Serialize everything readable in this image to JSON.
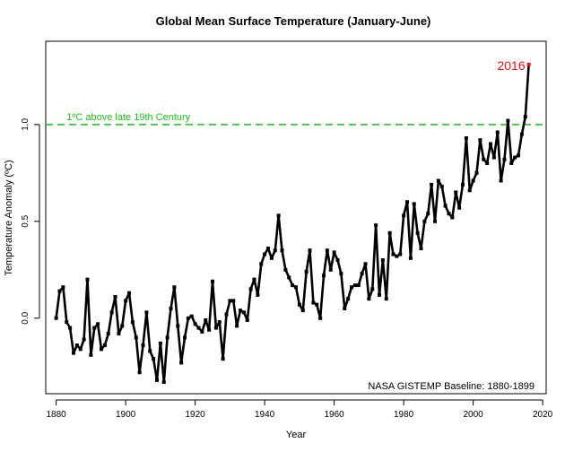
{
  "chart_data": {
    "type": "line",
    "title": "Global Mean Surface Temperature (January-June)",
    "xlabel": "Year",
    "ylabel": "Temperature Anomaly (ºC)",
    "xlim": [
      1877,
      2021
    ],
    "ylim": [
      -0.39,
      1.43
    ],
    "xticks": [
      1880,
      1900,
      1920,
      1940,
      1960,
      1980,
      2000,
      2020
    ],
    "yticks": [
      "0.0",
      "0.5",
      "1.0"
    ],
    "ytick_values": [
      0.0,
      0.5,
      1.0
    ],
    "reference_line": {
      "y": 1.0,
      "label": "1ºC above late 19th Century",
      "color": "#1fbf1f"
    },
    "highlight": {
      "year": 2016,
      "label": "2016",
      "color": "#e8141a"
    },
    "annotation": "NASA GISTEMP Baseline: 1880-1899",
    "series": [
      {
        "name": "Anomaly",
        "color": "#000000",
        "x": [
          1880,
          1881,
          1882,
          1883,
          1884,
          1885,
          1886,
          1887,
          1888,
          1889,
          1890,
          1891,
          1892,
          1893,
          1894,
          1895,
          1896,
          1897,
          1898,
          1899,
          1900,
          1901,
          1902,
          1903,
          1904,
          1905,
          1906,
          1907,
          1908,
          1909,
          1910,
          1911,
          1912,
          1913,
          1914,
          1915,
          1916,
          1917,
          1918,
          1919,
          1920,
          1921,
          1922,
          1923,
          1924,
          1925,
          1926,
          1927,
          1928,
          1929,
          1930,
          1931,
          1932,
          1933,
          1934,
          1935,
          1936,
          1937,
          1938,
          1939,
          1940,
          1941,
          1942,
          1943,
          1944,
          1945,
          1946,
          1947,
          1948,
          1949,
          1950,
          1951,
          1952,
          1953,
          1954,
          1955,
          1956,
          1957,
          1958,
          1959,
          1960,
          1961,
          1962,
          1963,
          1964,
          1965,
          1966,
          1967,
          1968,
          1969,
          1970,
          1971,
          1972,
          1973,
          1974,
          1975,
          1976,
          1977,
          1978,
          1979,
          1980,
          1981,
          1982,
          1983,
          1984,
          1985,
          1986,
          1987,
          1988,
          1989,
          1990,
          1991,
          1992,
          1993,
          1994,
          1995,
          1996,
          1997,
          1998,
          1999,
          2000,
          2001,
          2002,
          2003,
          2004,
          2005,
          2006,
          2007,
          2008,
          2009,
          2010,
          2011,
          2012,
          2013,
          2014,
          2015,
          2016
        ],
        "values": [
          0.0,
          0.14,
          0.16,
          -0.02,
          -0.05,
          -0.18,
          -0.14,
          -0.16,
          -0.11,
          0.2,
          -0.19,
          -0.05,
          -0.03,
          -0.16,
          -0.14,
          -0.08,
          0.03,
          0.11,
          -0.08,
          -0.04,
          0.09,
          0.13,
          -0.02,
          -0.1,
          -0.28,
          -0.14,
          0.03,
          -0.17,
          -0.21,
          -0.32,
          -0.13,
          -0.33,
          -0.1,
          0.05,
          0.16,
          -0.04,
          -0.23,
          -0.1,
          0.0,
          0.01,
          -0.03,
          -0.05,
          -0.07,
          -0.01,
          -0.06,
          0.19,
          -0.05,
          -0.02,
          -0.21,
          0.02,
          0.09,
          0.09,
          -0.04,
          0.04,
          0.03,
          -0.01,
          0.15,
          0.2,
          0.12,
          0.28,
          0.33,
          0.36,
          0.31,
          0.35,
          0.53,
          0.35,
          0.25,
          0.21,
          0.17,
          0.16,
          0.07,
          0.04,
          0.24,
          0.35,
          0.08,
          0.07,
          0.0,
          0.22,
          0.35,
          0.25,
          0.34,
          0.3,
          0.23,
          0.05,
          0.1,
          0.16,
          0.17,
          0.17,
          0.23,
          0.28,
          0.1,
          0.15,
          0.48,
          0.12,
          0.3,
          0.1,
          0.44,
          0.33,
          0.32,
          0.33,
          0.53,
          0.6,
          0.31,
          0.59,
          0.44,
          0.36,
          0.5,
          0.54,
          0.69,
          0.5,
          0.71,
          0.68,
          0.58,
          0.54,
          0.52,
          0.65,
          0.57,
          0.69,
          0.93,
          0.66,
          0.71,
          0.75,
          0.92,
          0.82,
          0.8,
          0.9,
          0.83,
          0.96,
          0.71,
          0.82,
          1.02,
          0.8,
          0.83,
          0.84,
          0.95,
          1.04,
          1.31
        ]
      }
    ]
  }
}
